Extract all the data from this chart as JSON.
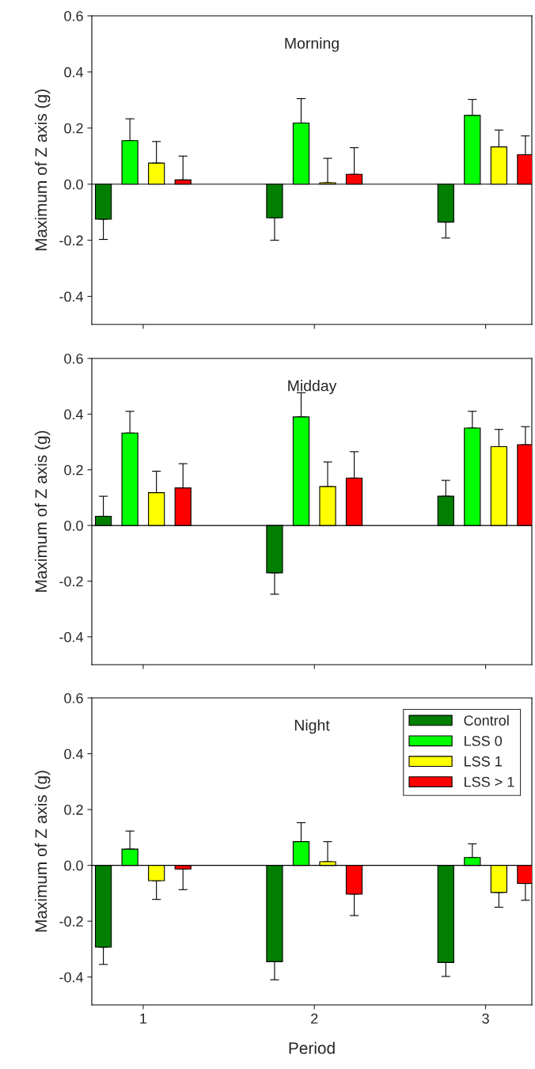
{
  "chart_data": [
    {
      "type": "bar",
      "title": "Morning",
      "ylabel": "Maximum of Z axis (g)",
      "categories": [
        "1",
        "2",
        "3"
      ],
      "ylim": [
        -0.5,
        0.6
      ],
      "yticks": [
        {
          "value": -0.4,
          "label": "-0.4"
        },
        {
          "value": -0.2,
          "label": "-0.2"
        },
        {
          "value": 0,
          "label": "0.0"
        },
        {
          "value": 0.2,
          "label": "0.2"
        },
        {
          "value": 0.4,
          "label": "0.4"
        },
        {
          "value": 0.6,
          "label": "0.6"
        }
      ],
      "tick_labels": "y",
      "grid": false,
      "legend": false,
      "ref_lines": [
        {
          "axis": "y",
          "value": 0,
          "color": "#000000"
        }
      ],
      "series": [
        {
          "color": "#007f00",
          "values": [
            -0.125,
            -0.12,
            -0.135
          ],
          "errors": [
            [
              -0.197,
              -0.125
            ],
            [
              -0.2,
              -0.12
            ],
            [
              -0.192,
              -0.135
            ]
          ]
        },
        {
          "color": "#00ff00",
          "values": [
            0.155,
            0.218,
            0.245
          ],
          "errors": [
            [
              0.155,
              0.233
            ],
            [
              0.218,
              0.305
            ],
            [
              0.245,
              0.302
            ]
          ]
        },
        {
          "color": "#ffff00",
          "values": [
            0.075,
            0.005,
            0.133
          ],
          "errors": [
            [
              0.075,
              0.152
            ],
            [
              0.005,
              0.092
            ],
            [
              0.133,
              0.193
            ]
          ]
        },
        {
          "color": "#ff0000",
          "values": [
            0.015,
            0.035,
            0.105
          ],
          "errors": [
            [
              0.015,
              0.1
            ],
            [
              0.035,
              0.13
            ],
            [
              0.105,
              0.172
            ]
          ]
        }
      ]
    },
    {
      "type": "bar",
      "title": "Midday",
      "ylabel": "Maximum of Z axis (g)",
      "categories": [
        "1",
        "2",
        "3"
      ],
      "ylim": [
        -0.5,
        0.6
      ],
      "yticks": [
        {
          "value": -0.4,
          "label": "-0.4"
        },
        {
          "value": -0.2,
          "label": "-0.2"
        },
        {
          "value": 0,
          "label": "0.0"
        },
        {
          "value": 0.2,
          "label": "0.2"
        },
        {
          "value": 0.4,
          "label": "0.4"
        },
        {
          "value": 0.6,
          "label": "0.6"
        }
      ],
      "tick_labels": "y",
      "grid": false,
      "legend": false,
      "ref_lines": [
        {
          "axis": "y",
          "value": 0,
          "color": "#000000"
        }
      ],
      "series": [
        {
          "color": "#007f00",
          "values": [
            0.033,
            -0.17,
            0.105
          ],
          "errors": [
            [
              0.033,
              0.105
            ],
            [
              -0.247,
              -0.17
            ],
            [
              0.105,
              0.162
            ]
          ]
        },
        {
          "color": "#00ff00",
          "values": [
            0.332,
            0.39,
            0.35
          ],
          "errors": [
            [
              0.332,
              0.41
            ],
            [
              0.39,
              0.477
            ],
            [
              0.35,
              0.41
            ]
          ]
        },
        {
          "color": "#ffff00",
          "values": [
            0.118,
            0.14,
            0.283
          ],
          "errors": [
            [
              0.118,
              0.195
            ],
            [
              0.14,
              0.228
            ],
            [
              0.283,
              0.345
            ]
          ]
        },
        {
          "color": "#ff0000",
          "values": [
            0.135,
            0.17,
            0.29
          ],
          "errors": [
            [
              0.135,
              0.222
            ],
            [
              0.17,
              0.265
            ],
            [
              0.29,
              0.355
            ]
          ]
        }
      ]
    },
    {
      "type": "bar",
      "title": "Night",
      "ylabel": "Maximum of Z axis (g)",
      "xlabel": "Period",
      "categories": [
        "1",
        "2",
        "3"
      ],
      "ylim": [
        -0.5,
        0.6
      ],
      "yticks": [
        {
          "value": -0.4,
          "label": "-0.4"
        },
        {
          "value": -0.2,
          "label": "-0.2"
        },
        {
          "value": 0,
          "label": "0.0"
        },
        {
          "value": 0.2,
          "label": "0.2"
        },
        {
          "value": 0.4,
          "label": "0.4"
        },
        {
          "value": 0.6,
          "label": "0.6"
        }
      ],
      "grid": false,
      "legend": "top right",
      "ref_lines": [
        {
          "axis": "y",
          "value": 0,
          "color": "#000000"
        }
      ],
      "series": [
        {
          "name": "Control",
          "color": "#007f00",
          "values": [
            -0.293,
            -0.345,
            -0.348
          ],
          "errors": [
            [
              -0.355,
              -0.293
            ],
            [
              -0.41,
              -0.345
            ],
            [
              -0.398,
              -0.348
            ]
          ]
        },
        {
          "name": "LSS 0",
          "color": "#00ff00",
          "values": [
            0.058,
            0.085,
            0.028
          ],
          "errors": [
            [
              0.058,
              0.123
            ],
            [
              0.085,
              0.153
            ],
            [
              0.028,
              0.077
            ]
          ]
        },
        {
          "name": "LSS 1",
          "color": "#ffff00",
          "values": [
            -0.055,
            0.013,
            -0.097
          ],
          "errors": [
            [
              -0.122,
              -0.055
            ],
            [
              0.013,
              0.085
            ],
            [
              -0.15,
              -0.097
            ]
          ]
        },
        {
          "name": "LSS > 1",
          "color": "#ff0000",
          "values": [
            -0.013,
            -0.103,
            -0.065
          ],
          "errors": [
            [
              -0.087,
              -0.013
            ],
            [
              -0.18,
              -0.103
            ],
            [
              -0.125,
              -0.065
            ]
          ]
        }
      ]
    }
  ]
}
